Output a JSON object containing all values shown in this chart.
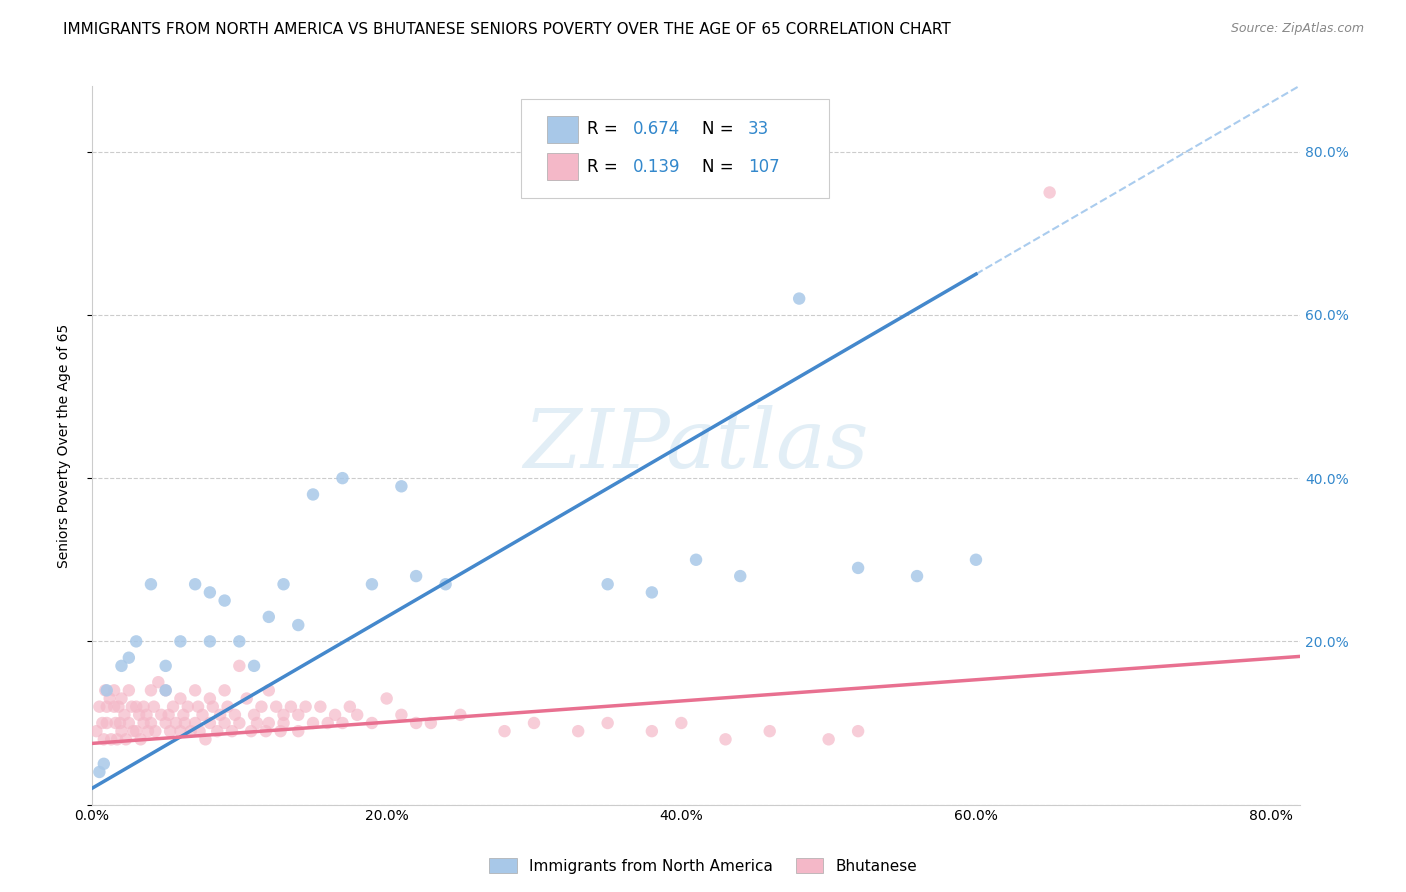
{
  "title": "IMMIGRANTS FROM NORTH AMERICA VS BHUTANESE SENIORS POVERTY OVER THE AGE OF 65 CORRELATION CHART",
  "source": "Source: ZipAtlas.com",
  "ylabel": "Seniors Poverty Over the Age of 65",
  "xlim": [
    0.0,
    0.82
  ],
  "ylim": [
    0.0,
    0.88
  ],
  "ytick_labels": [
    "",
    "20.0%",
    "40.0%",
    "60.0%",
    "80.0%"
  ],
  "ytick_values": [
    0.0,
    0.2,
    0.4,
    0.6,
    0.8
  ],
  "xtick_labels": [
    "0.0%",
    "20.0%",
    "40.0%",
    "60.0%",
    "80.0%"
  ],
  "xtick_values": [
    0.0,
    0.2,
    0.4,
    0.6,
    0.8
  ],
  "watermark": "ZIPatlas",
  "blue_color": "#a8c8e8",
  "pink_color": "#f4b8c8",
  "blue_line_color": "#4488cc",
  "pink_line_color": "#e87090",
  "dashed_line_color": "#aaccee",
  "R_blue": 0.674,
  "N_blue": 33,
  "R_pink": 0.139,
  "N_pink": 107,
  "blue_scatter_x": [
    0.005,
    0.008,
    0.01,
    0.02,
    0.025,
    0.03,
    0.04,
    0.05,
    0.05,
    0.06,
    0.07,
    0.08,
    0.08,
    0.09,
    0.1,
    0.11,
    0.12,
    0.13,
    0.14,
    0.15,
    0.17,
    0.19,
    0.21,
    0.22,
    0.24,
    0.35,
    0.38,
    0.41,
    0.44,
    0.48,
    0.52,
    0.56,
    0.6
  ],
  "blue_scatter_y": [
    0.04,
    0.05,
    0.14,
    0.17,
    0.18,
    0.2,
    0.27,
    0.17,
    0.14,
    0.2,
    0.27,
    0.26,
    0.2,
    0.25,
    0.2,
    0.17,
    0.23,
    0.27,
    0.22,
    0.38,
    0.4,
    0.27,
    0.39,
    0.28,
    0.27,
    0.27,
    0.26,
    0.3,
    0.28,
    0.62,
    0.29,
    0.28,
    0.3
  ],
  "pink_scatter_x": [
    0.003,
    0.005,
    0.007,
    0.008,
    0.009,
    0.01,
    0.01,
    0.012,
    0.013,
    0.015,
    0.015,
    0.016,
    0.017,
    0.018,
    0.019,
    0.02,
    0.02,
    0.022,
    0.023,
    0.025,
    0.025,
    0.027,
    0.028,
    0.03,
    0.03,
    0.032,
    0.033,
    0.035,
    0.035,
    0.037,
    0.038,
    0.04,
    0.04,
    0.042,
    0.043,
    0.045,
    0.047,
    0.05,
    0.05,
    0.052,
    0.053,
    0.055,
    0.057,
    0.06,
    0.06,
    0.062,
    0.063,
    0.065,
    0.067,
    0.07,
    0.07,
    0.072,
    0.073,
    0.075,
    0.077,
    0.08,
    0.08,
    0.082,
    0.085,
    0.087,
    0.09,
    0.09,
    0.092,
    0.095,
    0.097,
    0.1,
    0.1,
    0.105,
    0.108,
    0.11,
    0.112,
    0.115,
    0.118,
    0.12,
    0.12,
    0.125,
    0.128,
    0.13,
    0.13,
    0.135,
    0.14,
    0.14,
    0.145,
    0.15,
    0.155,
    0.16,
    0.165,
    0.17,
    0.175,
    0.18,
    0.19,
    0.2,
    0.21,
    0.22,
    0.23,
    0.25,
    0.28,
    0.3,
    0.33,
    0.35,
    0.38,
    0.4,
    0.43,
    0.46,
    0.5,
    0.52,
    0.65
  ],
  "pink_scatter_y": [
    0.09,
    0.12,
    0.1,
    0.08,
    0.14,
    0.1,
    0.12,
    0.13,
    0.08,
    0.14,
    0.12,
    0.1,
    0.08,
    0.12,
    0.1,
    0.13,
    0.09,
    0.11,
    0.08,
    0.14,
    0.1,
    0.12,
    0.09,
    0.12,
    0.09,
    0.11,
    0.08,
    0.12,
    0.1,
    0.11,
    0.09,
    0.14,
    0.1,
    0.12,
    0.09,
    0.15,
    0.11,
    0.14,
    0.1,
    0.11,
    0.09,
    0.12,
    0.1,
    0.13,
    0.09,
    0.11,
    0.1,
    0.12,
    0.09,
    0.14,
    0.1,
    0.12,
    0.09,
    0.11,
    0.08,
    0.13,
    0.1,
    0.12,
    0.09,
    0.11,
    0.14,
    0.1,
    0.12,
    0.09,
    0.11,
    0.17,
    0.1,
    0.13,
    0.09,
    0.11,
    0.1,
    0.12,
    0.09,
    0.14,
    0.1,
    0.12,
    0.09,
    0.11,
    0.1,
    0.12,
    0.11,
    0.09,
    0.12,
    0.1,
    0.12,
    0.1,
    0.11,
    0.1,
    0.12,
    0.11,
    0.1,
    0.13,
    0.11,
    0.1,
    0.1,
    0.11,
    0.09,
    0.1,
    0.09,
    0.1,
    0.09,
    0.1,
    0.08,
    0.09,
    0.08,
    0.09,
    0.75
  ],
  "title_fontsize": 11,
  "axis_label_fontsize": 10,
  "tick_fontsize": 10,
  "right_tick_color": "#3388cc",
  "blue_line_slope": 1.05,
  "blue_line_intercept": 0.02,
  "pink_line_slope": 0.13,
  "pink_line_intercept": 0.075
}
